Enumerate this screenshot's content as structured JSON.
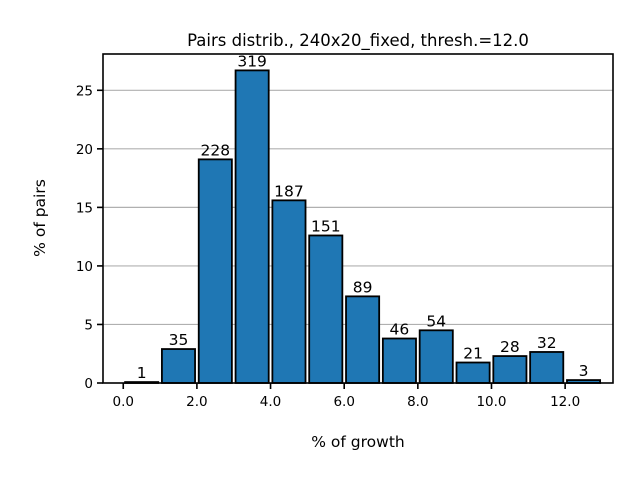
{
  "chart_data": {
    "type": "bar",
    "title": "Pairs distrib., 240x20_fixed, thresh.=12.0",
    "xlabel": "% of growth",
    "ylabel": "% of pairs",
    "xlim": [
      -0.55,
      13.3
    ],
    "ylim": [
      0,
      28.1
    ],
    "x_ticks": [
      0,
      2,
      4,
      6,
      8,
      10,
      12
    ],
    "x_tick_labels": [
      "0.0",
      "2.0",
      "4.0",
      "6.0",
      "8.0",
      "10.0",
      "12.0"
    ],
    "y_ticks": [
      0,
      5,
      10,
      15,
      20,
      25
    ],
    "y_tick_labels": [
      "0",
      "5",
      "10",
      "15",
      "20",
      "25"
    ],
    "grid": "y",
    "bar_color": "#1f77b4",
    "edge_color": "#000000",
    "bins": [
      {
        "x_start": 0,
        "x_end": 1,
        "value": 0.08,
        "count": "1"
      },
      {
        "x_start": 1,
        "x_end": 2,
        "value": 2.9,
        "count": "35"
      },
      {
        "x_start": 2,
        "x_end": 3,
        "value": 19.1,
        "count": "228"
      },
      {
        "x_start": 3,
        "x_end": 4,
        "value": 26.7,
        "count": "319"
      },
      {
        "x_start": 4,
        "x_end": 5,
        "value": 15.6,
        "count": "187"
      },
      {
        "x_start": 5,
        "x_end": 6,
        "value": 12.6,
        "count": "151"
      },
      {
        "x_start": 6,
        "x_end": 7,
        "value": 7.4,
        "count": "89"
      },
      {
        "x_start": 7,
        "x_end": 8,
        "value": 3.8,
        "count": "46"
      },
      {
        "x_start": 8,
        "x_end": 9,
        "value": 4.5,
        "count": "54"
      },
      {
        "x_start": 9,
        "x_end": 10,
        "value": 1.75,
        "count": "21"
      },
      {
        "x_start": 10,
        "x_end": 11,
        "value": 2.3,
        "count": "28"
      },
      {
        "x_start": 11,
        "x_end": 12,
        "value": 2.65,
        "count": "32"
      },
      {
        "x_start": 12,
        "x_end": 13,
        "value": 0.25,
        "count": "3"
      }
    ]
  }
}
